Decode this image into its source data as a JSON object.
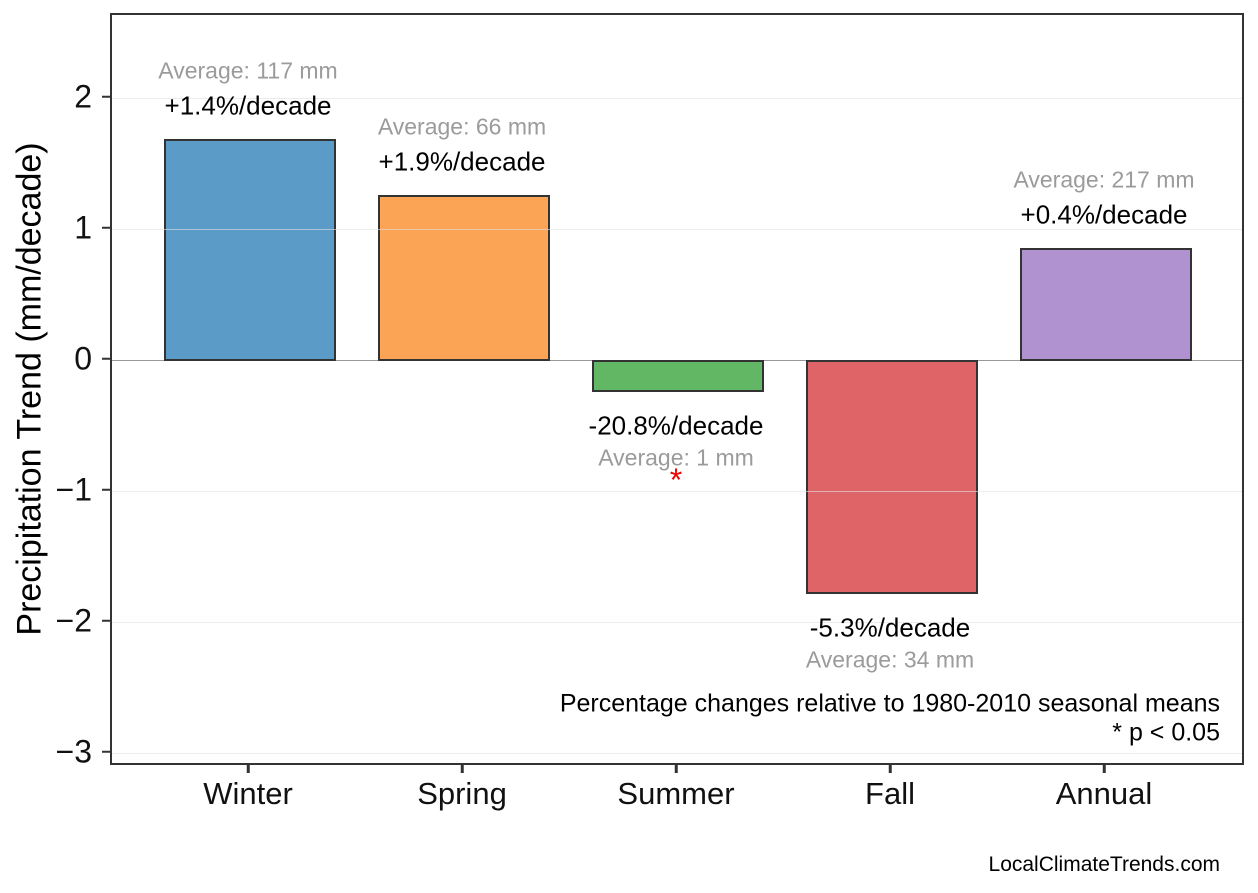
{
  "chart_data": {
    "type": "bar",
    "title": "",
    "xlabel": "",
    "ylabel": "Precipitation Trend (mm/decade)",
    "categories": [
      "Winter",
      "Spring",
      "Summer",
      "Fall",
      "Annual"
    ],
    "values": [
      1.69,
      1.26,
      -0.24,
      -1.78,
      0.86
    ],
    "bars": [
      {
        "category": "Winter",
        "value": 1.69,
        "pct_label": "+1.4%/decade",
        "avg_label": "Average: 117 mm",
        "color": "#5B9BC8",
        "significant": false
      },
      {
        "category": "Spring",
        "value": 1.26,
        "pct_label": "+1.9%/decade",
        "avg_label": "Average: 66 mm",
        "color": "#FCA455",
        "significant": false
      },
      {
        "category": "Summer",
        "value": -0.24,
        "pct_label": "-20.8%/decade",
        "avg_label": "Average: 1 mm",
        "color": "#62B765",
        "significant": true
      },
      {
        "category": "Fall",
        "value": -1.78,
        "pct_label": "-5.3%/decade",
        "avg_label": "Average: 34 mm",
        "color": "#DF6467",
        "significant": false
      },
      {
        "category": "Annual",
        "value": 0.86,
        "pct_label": "+0.4%/decade",
        "avg_label": "Average: 217 mm",
        "color": "#B092D0",
        "significant": false
      }
    ],
    "bar_edge_color": "#333333",
    "significance_marker": "*",
    "significance_color": "#EE0000",
    "yticks": [
      2,
      1,
      0,
      -1,
      -2,
      -3
    ],
    "ylim": [
      -3.1,
      2.63
    ],
    "grid": true,
    "grid_above_bars": true,
    "zero_line": true,
    "legend": null,
    "annotations": [
      "Percentage changes relative to 1980-2010 seasonal means",
      "* p < 0.05"
    ],
    "watermark": "LocalClimateTrends.com"
  }
}
